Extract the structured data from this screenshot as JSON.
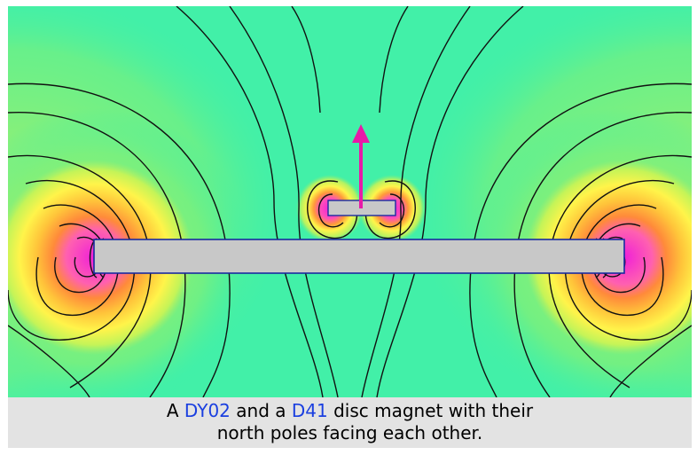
{
  "caption": {
    "line1_prefix": "A",
    "magnet_large": "DY02",
    "line1_mid": "and a",
    "magnet_small": "D41",
    "line1_suffix": "disc magnet with their",
    "line2": "north poles facing each other."
  },
  "colors": {
    "background_field": "#36f0b0",
    "mid_field": "#a6f06a",
    "strong_field": "#fff44a",
    "stronger_field": "#ffa23a",
    "peak_field": "#f020d8",
    "magnet_fill": "#c8c8c8",
    "magnet_outline": "#1a2aa0",
    "field_lines": "#111111",
    "arrow": "#e81aa8",
    "link_text": "#1a3fe0"
  },
  "icons": {
    "direction_arrow": "up-arrow-icon"
  }
}
